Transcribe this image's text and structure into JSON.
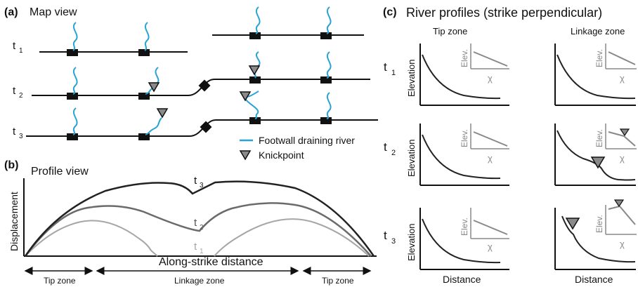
{
  "panel_a": {
    "letter": "(a)",
    "title": "Map view",
    "time_labels": [
      {
        "main": "t",
        "sub": "1"
      },
      {
        "main": "t",
        "sub": "2"
      },
      {
        "main": "t",
        "sub": "3"
      }
    ],
    "legend": {
      "river": "Footwall draining river",
      "knickpoint": "Knickpoint"
    },
    "colors": {
      "river": "#29a3d4",
      "fault": "#111111",
      "knickpoint": "#8a8a8a"
    }
  },
  "panel_b": {
    "letter": "(b)",
    "title": "Profile view",
    "ylabel": "Displacement",
    "xlabel": "Along-strike distance",
    "curves": [
      {
        "main": "t",
        "sub": "1",
        "color": "#a6a6a6"
      },
      {
        "main": "t",
        "sub": "2",
        "color": "#6b6b6b"
      },
      {
        "main": "t",
        "sub": "3",
        "color": "#222222"
      }
    ],
    "zones": [
      "Tip zone",
      "Linkage zone",
      "Tip zone"
    ]
  },
  "panel_c": {
    "letter": "(c)",
    "title": "River profiles (strike perpendicular)",
    "columns": [
      "Tip zone",
      "Linkage zone"
    ],
    "rows": [
      {
        "main": "t",
        "sub": "1"
      },
      {
        "main": "t",
        "sub": "2"
      },
      {
        "main": "t",
        "sub": "3"
      }
    ],
    "ylabel": "Elevation",
    "xlabel": "Distance",
    "inset_ylabel": "Elev.",
    "inset_xlabel": "χ"
  }
}
